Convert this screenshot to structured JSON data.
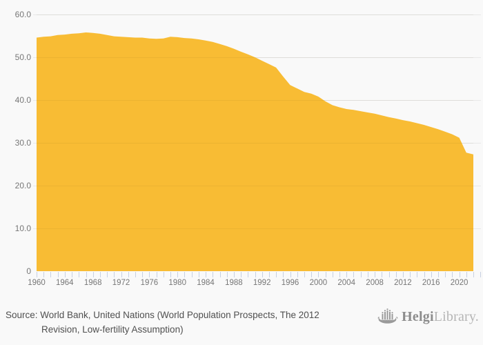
{
  "chart_data": {
    "type": "area",
    "title": "",
    "xlabel": "",
    "ylabel": "",
    "x_start_year": 1960,
    "x_end_year": 2022,
    "minor_tick_end_year": 2023,
    "ylim": [
      0,
      60
    ],
    "grid": true,
    "legend": "none",
    "area_color": "#F8BC34",
    "background_color": "#f9f9f9",
    "gridline_color": "#e9e9e9",
    "tick_color": "#c7d0e2",
    "axis_text_color": "#767676",
    "y_ticks": [
      {
        "label": "60.0",
        "value": 60
      },
      {
        "label": "50.0",
        "value": 50
      },
      {
        "label": "40.0",
        "value": 40
      },
      {
        "label": "30.0",
        "value": 30
      },
      {
        "label": "20.0",
        "value": 20
      },
      {
        "label": "10.0",
        "value": 10
      },
      {
        "label": "0",
        "value": 0
      }
    ],
    "x_tick_labels": [
      "1960",
      "1964",
      "1968",
      "1972",
      "1976",
      "1980",
      "1984",
      "1988",
      "1992",
      "1996",
      "2000",
      "2004",
      "2008",
      "2012",
      "2016",
      "2020"
    ],
    "series": [
      {
        "name": "value",
        "x": [
          1960,
          1961,
          1962,
          1963,
          1964,
          1965,
          1966,
          1967,
          1968,
          1969,
          1970,
          1971,
          1972,
          1973,
          1974,
          1975,
          1976,
          1977,
          1978,
          1979,
          1980,
          1981,
          1982,
          1983,
          1984,
          1985,
          1986,
          1987,
          1988,
          1989,
          1990,
          1991,
          1992,
          1993,
          1994,
          1995,
          1996,
          1997,
          1998,
          1999,
          2000,
          2001,
          2002,
          2003,
          2004,
          2005,
          2006,
          2007,
          2008,
          2009,
          2010,
          2011,
          2012,
          2013,
          2014,
          2015,
          2016,
          2017,
          2018,
          2019,
          2020,
          2021,
          2022
        ],
        "values": [
          54.6,
          54.8,
          54.9,
          55.2,
          55.3,
          55.5,
          55.6,
          55.8,
          55.7,
          55.5,
          55.2,
          54.9,
          54.8,
          54.7,
          54.6,
          54.6,
          54.4,
          54.3,
          54.4,
          54.8,
          54.7,
          54.5,
          54.4,
          54.2,
          53.9,
          53.6,
          53.1,
          52.6,
          52.0,
          51.3,
          50.7,
          50.0,
          49.2,
          48.4,
          47.6,
          45.5,
          43.5,
          42.7,
          41.9,
          41.5,
          40.8,
          39.7,
          38.8,
          38.3,
          37.9,
          37.7,
          37.4,
          37.1,
          36.8,
          36.4,
          36.0,
          35.7,
          35.3,
          35.0,
          34.6,
          34.2,
          33.7,
          33.2,
          32.6,
          32.0,
          31.2,
          27.7,
          27.3
        ]
      }
    ]
  },
  "source": {
    "line1": "Source: World Bank, United Nations (World Population Prospects, The 2012",
    "line2": "Revision, Low-fertility Assumption)"
  },
  "logo": {
    "brand_bold": "Helgi",
    "brand_light": "Library."
  }
}
